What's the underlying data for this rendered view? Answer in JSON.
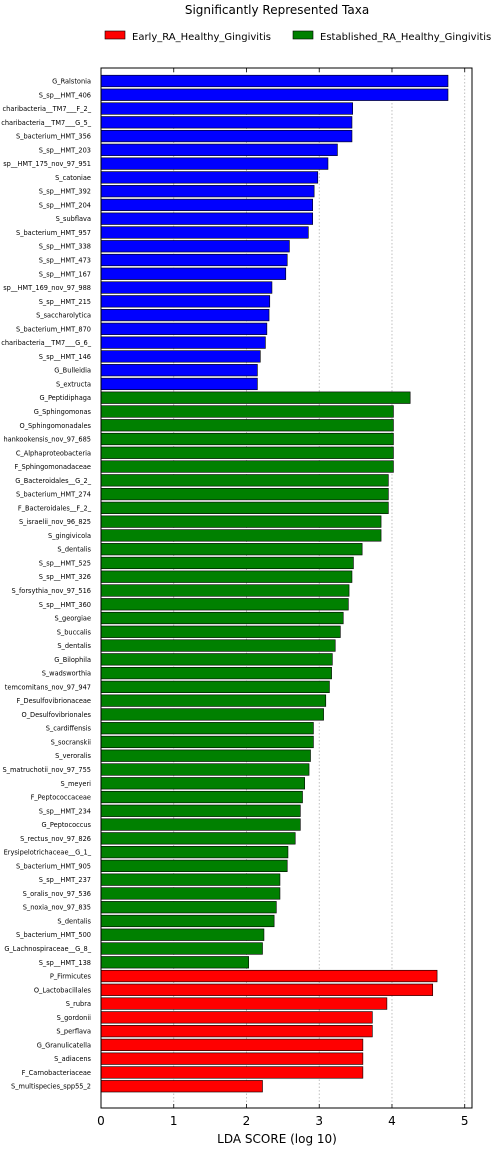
{
  "chart_data": {
    "type": "bar",
    "orientation": "horizontal",
    "title": "Significantly Represented Taxa",
    "xlabel": "LDA SCORE (log 10)",
    "xlim": [
      0,
      5.1
    ],
    "xticks": [
      "0",
      "1",
      "2",
      "3",
      "4",
      "5"
    ],
    "grid": "vertical-dotted",
    "legend_position": "top",
    "legend": [
      {
        "name": "Early_RA_Healthy_Gingivitis",
        "color": "#ff0000"
      },
      {
        "name": "Established_RA_Healthy_Gingivitis",
        "color": "#008000"
      }
    ],
    "colors": {
      "blue": "#0000ff",
      "green": "#008000",
      "red": "#ff0000",
      "grid": "#b0b0b0"
    },
    "bars": [
      {
        "label": "G_Ralstonia",
        "value": 4.77,
        "color": "blue"
      },
      {
        "label": "S_sp__HMT_406",
        "value": 4.77,
        "color": "blue"
      },
      {
        "label": "charibacteria__TM7___F_2_",
        "value": 3.46,
        "color": "blue"
      },
      {
        "label": "charibacteria__TM7___G_5_",
        "value": 3.45,
        "color": "blue"
      },
      {
        "label": "S_bacterium_HMT_356",
        "value": 3.45,
        "color": "blue"
      },
      {
        "label": "S_sp__HMT_203",
        "value": 3.25,
        "color": "blue"
      },
      {
        "label": "sp__HMT_175_nov_97_951",
        "value": 3.12,
        "color": "blue"
      },
      {
        "label": "S_catoniae",
        "value": 2.98,
        "color": "blue"
      },
      {
        "label": "S_sp__HMT_392",
        "value": 2.93,
        "color": "blue"
      },
      {
        "label": "S_sp__HMT_204",
        "value": 2.91,
        "color": "blue"
      },
      {
        "label": "S_subflava",
        "value": 2.91,
        "color": "blue"
      },
      {
        "label": "S_bacterium_HMT_957",
        "value": 2.85,
        "color": "blue"
      },
      {
        "label": "S_sp__HMT_338",
        "value": 2.59,
        "color": "blue"
      },
      {
        "label": "S_sp__HMT_473",
        "value": 2.56,
        "color": "blue"
      },
      {
        "label": "S_sp__HMT_167",
        "value": 2.54,
        "color": "blue"
      },
      {
        "label": "sp__HMT_169_nov_97_988",
        "value": 2.35,
        "color": "blue"
      },
      {
        "label": "S_sp__HMT_215",
        "value": 2.32,
        "color": "blue"
      },
      {
        "label": "S_saccharolytica",
        "value": 2.31,
        "color": "blue"
      },
      {
        "label": "S_bacterium_HMT_870",
        "value": 2.28,
        "color": "blue"
      },
      {
        "label": "charibacteria__TM7___G_6_",
        "value": 2.26,
        "color": "blue"
      },
      {
        "label": "S_sp__HMT_146",
        "value": 2.19,
        "color": "blue"
      },
      {
        "label": "G_Bulleidia",
        "value": 2.15,
        "color": "blue"
      },
      {
        "label": "S_extructa",
        "value": 2.15,
        "color": "blue"
      },
      {
        "label": "G_Peptidiphaga",
        "value": 4.25,
        "color": "green"
      },
      {
        "label": "G_Sphingomonas",
        "value": 4.02,
        "color": "green"
      },
      {
        "label": "O_Sphingomonadales",
        "value": 4.02,
        "color": "green"
      },
      {
        "label": "hankookensis_nov_97_685",
        "value": 4.02,
        "color": "green"
      },
      {
        "label": "C_Alphaproteobacteria",
        "value": 4.02,
        "color": "green"
      },
      {
        "label": "F_Sphingomonadaceae",
        "value": 4.02,
        "color": "green"
      },
      {
        "label": "G_Bacteroidales__G_2_",
        "value": 3.95,
        "color": "green"
      },
      {
        "label": "S_bacterium_HMT_274",
        "value": 3.95,
        "color": "green"
      },
      {
        "label": "F_Bacteroidales__F_2_",
        "value": 3.95,
        "color": "green"
      },
      {
        "label": "S_israelii_nov_96_825",
        "value": 3.85,
        "color": "green"
      },
      {
        "label": "S_gingivicola",
        "value": 3.85,
        "color": "green"
      },
      {
        "label": "S_dentalis",
        "value": 3.59,
        "color": "green"
      },
      {
        "label": "S_sp__HMT_525",
        "value": 3.47,
        "color": "green"
      },
      {
        "label": "S_sp__HMT_326",
        "value": 3.45,
        "color": "green"
      },
      {
        "label": "S_forsythia_nov_97_516",
        "value": 3.41,
        "color": "green"
      },
      {
        "label": "S_sp__HMT_360",
        "value": 3.4,
        "color": "green"
      },
      {
        "label": "S_georgiae",
        "value": 3.33,
        "color": "green"
      },
      {
        "label": "S_buccalis",
        "value": 3.29,
        "color": "green"
      },
      {
        "label": "S_dentalis",
        "value": 3.22,
        "color": "green"
      },
      {
        "label": "G_Bilophila",
        "value": 3.18,
        "color": "green"
      },
      {
        "label": "S_wadsworthia",
        "value": 3.17,
        "color": "green"
      },
      {
        "label": "temcomitans_nov_97_947",
        "value": 3.14,
        "color": "green"
      },
      {
        "label": "F_Desulfovibrionaceae",
        "value": 3.09,
        "color": "green"
      },
      {
        "label": "O_Desulfovibrionales",
        "value": 3.06,
        "color": "green"
      },
      {
        "label": "S_cardiffensis",
        "value": 2.92,
        "color": "green"
      },
      {
        "label": "S_socranskii",
        "value": 2.92,
        "color": "green"
      },
      {
        "label": "S_veroralis",
        "value": 2.88,
        "color": "green"
      },
      {
        "label": "S_matruchotii_nov_97_755",
        "value": 2.86,
        "color": "green"
      },
      {
        "label": "S_meyeri",
        "value": 2.8,
        "color": "green"
      },
      {
        "label": "F_Peptococcaceae",
        "value": 2.77,
        "color": "green"
      },
      {
        "label": "S_sp__HMT_234",
        "value": 2.74,
        "color": "green"
      },
      {
        "label": "G_Peptococcus",
        "value": 2.74,
        "color": "green"
      },
      {
        "label": "S_rectus_nov_97_826",
        "value": 2.67,
        "color": "green"
      },
      {
        "label": "Erysipelotrichaceae__G_1_",
        "value": 2.57,
        "color": "green"
      },
      {
        "label": "S_bacterium_HMT_905",
        "value": 2.56,
        "color": "green"
      },
      {
        "label": "S_sp__HMT_237",
        "value": 2.46,
        "color": "green"
      },
      {
        "label": "S_oralis_nov_97_536",
        "value": 2.46,
        "color": "green"
      },
      {
        "label": "S_noxia_nov_97_835",
        "value": 2.41,
        "color": "green"
      },
      {
        "label": "S_dentalis",
        "value": 2.38,
        "color": "green"
      },
      {
        "label": "S_bacterium_HMT_500",
        "value": 2.24,
        "color": "green"
      },
      {
        "label": "G_Lachnospiraceae__G_8_",
        "value": 2.22,
        "color": "green"
      },
      {
        "label": "S_sp__HMT_138",
        "value": 2.03,
        "color": "green"
      },
      {
        "label": "P_Firmicutes",
        "value": 4.62,
        "color": "red"
      },
      {
        "label": "O_Lactobacillales",
        "value": 4.56,
        "color": "red"
      },
      {
        "label": "S_rubra",
        "value": 3.93,
        "color": "red"
      },
      {
        "label": "S_gordonii",
        "value": 3.73,
        "color": "red"
      },
      {
        "label": "S_perflava",
        "value": 3.73,
        "color": "red"
      },
      {
        "label": "G_Granulicatella",
        "value": 3.6,
        "color": "red"
      },
      {
        "label": "S_adiacens",
        "value": 3.6,
        "color": "red"
      },
      {
        "label": "F_Carnobacteriaceae",
        "value": 3.6,
        "color": "red"
      },
      {
        "label": "S_multispecies_spp55_2",
        "value": 2.22,
        "color": "red"
      }
    ]
  }
}
